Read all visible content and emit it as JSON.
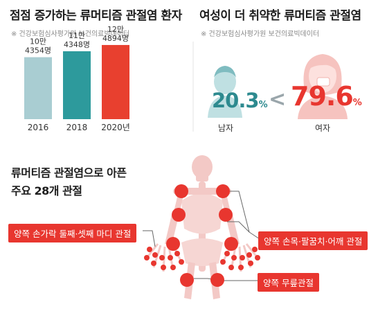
{
  "left_panel": {
    "title": "점점 증가하는 류머티즘 관절염 환자",
    "source": "※ 건강보험심사평가원 보건의료빅데이터"
  },
  "right_panel": {
    "title": "여성이 더 취약한 류머티즘 관절염",
    "source": "※ 건강보험심사평가원 보건의료빅데이터",
    "male": {
      "value": "20.3",
      "unit": "%",
      "label": "남자",
      "color": "#2d8a8f"
    },
    "compare_symbol": "<",
    "female": {
      "value": "79.6",
      "unit": "%",
      "label": "여자",
      "color": "#e8362f"
    }
  },
  "joints": {
    "title_line1": "류머티즘 관절염으로 아픈",
    "title_line2": "주요 28개 관절",
    "callout_fingers": "양쪽 손가락 둘째·셋째 마디 관절",
    "callout_wrist": "양쪽 손목·팔꿈치·어깨 관절",
    "callout_knee": "양쪽 무릎관절",
    "joint_color": "#e8362f",
    "skeleton_color": "#f3c9c6"
  },
  "chart_data": {
    "type": "bar",
    "categories": [
      "2016",
      "2018",
      "2020년"
    ],
    "values": [
      104354,
      114348,
      124894
    ],
    "value_labels": [
      [
        "10만",
        "4354명"
      ],
      [
        "11만",
        "4348명"
      ],
      [
        "12만",
        "4894명"
      ]
    ],
    "colors": [
      "#a9cdd2",
      "#2d9a9c",
      "#e8402f"
    ],
    "ylim": [
      0,
      140000
    ],
    "title": "점점 증가하는 류머티즘 관절염 환자",
    "xlabel": "",
    "ylabel": ""
  }
}
